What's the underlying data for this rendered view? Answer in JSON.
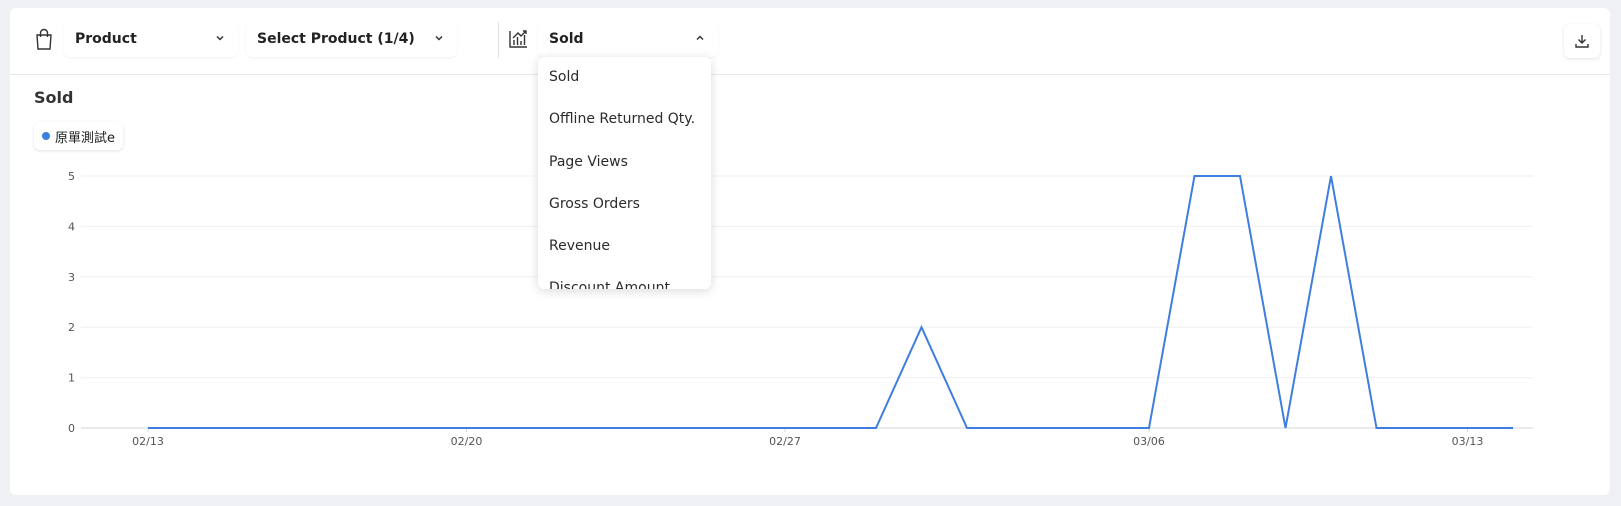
{
  "toolbar": {
    "dimension_select": "Product",
    "product_select": "Select Product (1/4)",
    "metric_select": "Sold"
  },
  "metric_dropdown": {
    "options": [
      "Sold",
      "Offline Returned Qty.",
      "Page Views",
      "Gross Orders",
      "Revenue",
      "Discount Amount"
    ]
  },
  "colors": {
    "series": "#3e7ee0",
    "background": "#eef0f3"
  },
  "chart_data": {
    "type": "line",
    "title": "Sold",
    "x": [
      "02/13",
      "02/14",
      "02/15",
      "02/16",
      "02/17",
      "02/18",
      "02/19",
      "02/20",
      "02/21",
      "02/22",
      "02/23",
      "02/24",
      "02/25",
      "02/26",
      "02/27",
      "02/28",
      "02/29",
      "03/01",
      "03/02",
      "03/03",
      "03/04",
      "03/05",
      "03/06",
      "03/07",
      "03/08",
      "03/09",
      "03/10",
      "03/11",
      "03/12",
      "03/13",
      "03/14"
    ],
    "x_ticks": [
      "02/13",
      "02/20",
      "02/27",
      "03/06",
      "03/13"
    ],
    "y_ticks": [
      "0",
      "1",
      "2",
      "3",
      "4",
      "5"
    ],
    "ylim": [
      0,
      5
    ],
    "grid": true,
    "legend_position": "top-left",
    "series": [
      {
        "name": "原單測試e",
        "color": "#3e7ee0",
        "values": [
          0,
          0,
          0,
          0,
          0,
          0,
          0,
          0,
          0,
          0,
          0,
          0,
          0,
          0,
          0,
          0,
          0,
          2,
          0,
          0,
          0,
          0,
          0,
          5,
          5,
          0,
          5,
          0,
          0,
          0,
          0
        ]
      }
    ]
  }
}
